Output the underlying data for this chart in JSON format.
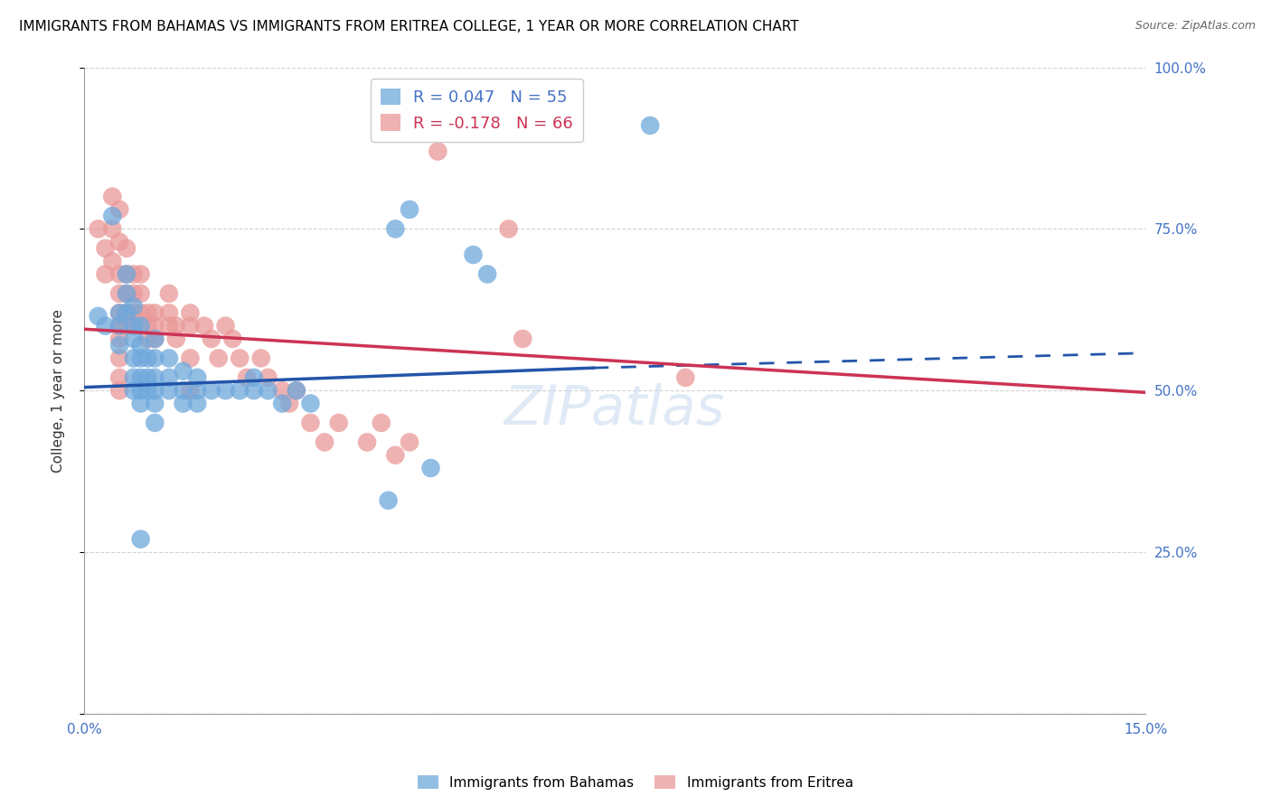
{
  "title": "IMMIGRANTS FROM BAHAMAS VS IMMIGRANTS FROM ERITREA COLLEGE, 1 YEAR OR MORE CORRELATION CHART",
  "source": "Source: ZipAtlas.com",
  "ylabel": "College, 1 year or more",
  "xlim": [
    0.0,
    0.15
  ],
  "ylim": [
    0.0,
    1.0
  ],
  "yticks": [
    0.0,
    0.25,
    0.5,
    0.75,
    1.0
  ],
  "ytick_labels": [
    "",
    "25.0%",
    "50.0%",
    "75.0%",
    "100.0%"
  ],
  "xticks": [
    0.0,
    0.05,
    0.1,
    0.15
  ],
  "xtick_labels": [
    "0.0%",
    "",
    "",
    "15.0%"
  ],
  "series_bahamas": {
    "color": "#6fa8dc",
    "line_color": "#2255aa",
    "trend_x0": 0.0,
    "trend_y0": 0.505,
    "trend_x1": 0.072,
    "trend_y1": 0.535,
    "trend_dash_x1": 0.15,
    "trend_dash_y1": 0.558,
    "points": [
      [
        0.002,
        0.615
      ],
      [
        0.003,
        0.6
      ],
      [
        0.004,
        0.77
      ],
      [
        0.005,
        0.62
      ],
      [
        0.005,
        0.6
      ],
      [
        0.005,
        0.57
      ],
      [
        0.006,
        0.68
      ],
      [
        0.006,
        0.65
      ],
      [
        0.006,
        0.62
      ],
      [
        0.007,
        0.63
      ],
      [
        0.007,
        0.6
      ],
      [
        0.007,
        0.58
      ],
      [
        0.007,
        0.55
      ],
      [
        0.007,
        0.52
      ],
      [
        0.007,
        0.5
      ],
      [
        0.008,
        0.6
      ],
      [
        0.008,
        0.57
      ],
      [
        0.008,
        0.55
      ],
      [
        0.008,
        0.52
      ],
      [
        0.008,
        0.5
      ],
      [
        0.008,
        0.48
      ],
      [
        0.009,
        0.55
      ],
      [
        0.009,
        0.52
      ],
      [
        0.009,
        0.5
      ],
      [
        0.01,
        0.58
      ],
      [
        0.01,
        0.55
      ],
      [
        0.01,
        0.52
      ],
      [
        0.01,
        0.5
      ],
      [
        0.01,
        0.48
      ],
      [
        0.01,
        0.45
      ],
      [
        0.012,
        0.55
      ],
      [
        0.012,
        0.52
      ],
      [
        0.012,
        0.5
      ],
      [
        0.014,
        0.53
      ],
      [
        0.014,
        0.5
      ],
      [
        0.014,
        0.48
      ],
      [
        0.016,
        0.52
      ],
      [
        0.016,
        0.5
      ],
      [
        0.016,
        0.48
      ],
      [
        0.018,
        0.5
      ],
      [
        0.02,
        0.5
      ],
      [
        0.022,
        0.5
      ],
      [
        0.024,
        0.52
      ],
      [
        0.024,
        0.5
      ],
      [
        0.026,
        0.5
      ],
      [
        0.028,
        0.48
      ],
      [
        0.03,
        0.5
      ],
      [
        0.032,
        0.48
      ],
      [
        0.008,
        0.27
      ],
      [
        0.043,
        0.33
      ],
      [
        0.049,
        0.38
      ],
      [
        0.044,
        0.75
      ],
      [
        0.046,
        0.78
      ],
      [
        0.055,
        0.71
      ],
      [
        0.057,
        0.68
      ],
      [
        0.08,
        0.91
      ]
    ]
  },
  "series_eritrea": {
    "color": "#ea9999",
    "line_color": "#cc3355",
    "trend_x0": 0.0,
    "trend_y0": 0.595,
    "trend_x1": 0.15,
    "trend_y1": 0.497,
    "points": [
      [
        0.002,
        0.75
      ],
      [
        0.003,
        0.72
      ],
      [
        0.003,
        0.68
      ],
      [
        0.004,
        0.8
      ],
      [
        0.004,
        0.75
      ],
      [
        0.004,
        0.7
      ],
      [
        0.005,
        0.78
      ],
      [
        0.005,
        0.73
      ],
      [
        0.005,
        0.68
      ],
      [
        0.005,
        0.65
      ],
      [
        0.005,
        0.62
      ],
      [
        0.005,
        0.6
      ],
      [
        0.005,
        0.58
      ],
      [
        0.005,
        0.55
      ],
      [
        0.005,
        0.52
      ],
      [
        0.005,
        0.5
      ],
      [
        0.006,
        0.72
      ],
      [
        0.006,
        0.68
      ],
      [
        0.006,
        0.65
      ],
      [
        0.006,
        0.62
      ],
      [
        0.006,
        0.6
      ],
      [
        0.007,
        0.68
      ],
      [
        0.007,
        0.65
      ],
      [
        0.007,
        0.62
      ],
      [
        0.007,
        0.6
      ],
      [
        0.008,
        0.68
      ],
      [
        0.008,
        0.65
      ],
      [
        0.008,
        0.62
      ],
      [
        0.009,
        0.62
      ],
      [
        0.009,
        0.6
      ],
      [
        0.009,
        0.58
      ],
      [
        0.01,
        0.62
      ],
      [
        0.01,
        0.6
      ],
      [
        0.01,
        0.58
      ],
      [
        0.012,
        0.65
      ],
      [
        0.012,
        0.62
      ],
      [
        0.012,
        0.6
      ],
      [
        0.013,
        0.6
      ],
      [
        0.013,
        0.58
      ],
      [
        0.015,
        0.62
      ],
      [
        0.015,
        0.6
      ],
      [
        0.015,
        0.55
      ],
      [
        0.015,
        0.5
      ],
      [
        0.017,
        0.6
      ],
      [
        0.018,
        0.58
      ],
      [
        0.019,
        0.55
      ],
      [
        0.02,
        0.6
      ],
      [
        0.021,
        0.58
      ],
      [
        0.022,
        0.55
      ],
      [
        0.023,
        0.52
      ],
      [
        0.025,
        0.55
      ],
      [
        0.026,
        0.52
      ],
      [
        0.028,
        0.5
      ],
      [
        0.029,
        0.48
      ],
      [
        0.03,
        0.5
      ],
      [
        0.032,
        0.45
      ],
      [
        0.034,
        0.42
      ],
      [
        0.036,
        0.45
      ],
      [
        0.04,
        0.42
      ],
      [
        0.042,
        0.45
      ],
      [
        0.044,
        0.4
      ],
      [
        0.046,
        0.42
      ],
      [
        0.05,
        0.87
      ],
      [
        0.06,
        0.75
      ],
      [
        0.062,
        0.58
      ],
      [
        0.085,
        0.52
      ]
    ]
  },
  "watermark": "ZIPatlas",
  "background_color": "#ffffff",
  "title_color": "#000000",
  "axis_color": "#4472c4",
  "grid_color": "#d3d3d3",
  "title_fontsize": 11,
  "axis_label_fontsize": 11,
  "tick_fontsize": 11
}
